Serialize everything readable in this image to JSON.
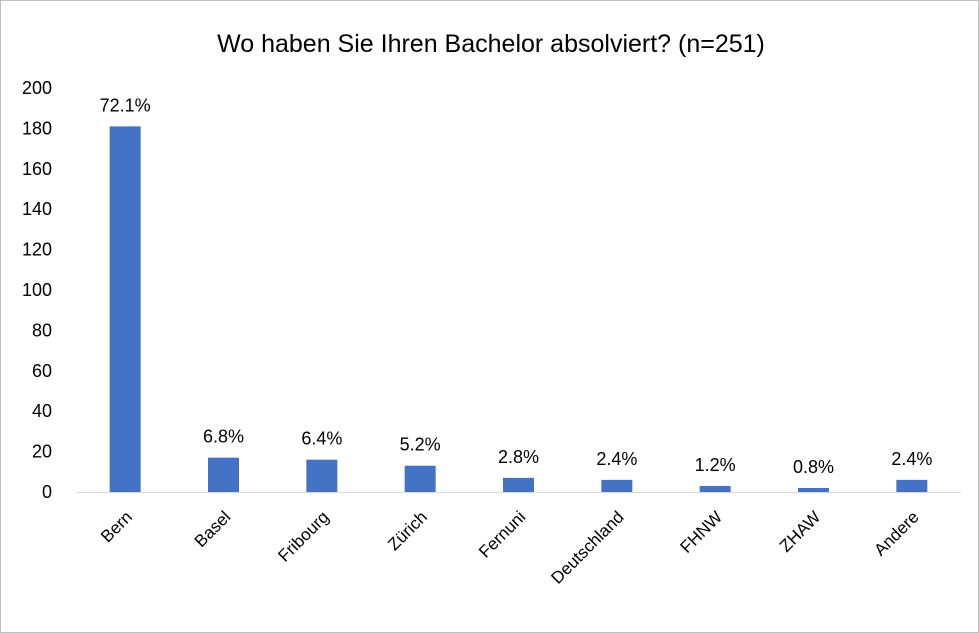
{
  "chart_data": {
    "type": "bar",
    "title": "Wo haben Sie Ihren Bachelor absolviert? (n=251)",
    "xlabel": "",
    "ylabel": "",
    "categories": [
      "Bern",
      "Basel",
      "Fribourg",
      "Zürich",
      "Fernuni",
      "Deutschland",
      "FHNW",
      "ZHAW",
      "Andere"
    ],
    "values": [
      181,
      17,
      16,
      13,
      7,
      6,
      3,
      2,
      6
    ],
    "data_labels": [
      "72.1%",
      "6.8%",
      "6.4%",
      "5.2%",
      "2.8%",
      "2.4%",
      "1.2%",
      "0.8%",
      "2.4%"
    ],
    "ylim": [
      0,
      200
    ],
    "yticks": [
      0,
      20,
      40,
      60,
      80,
      100,
      120,
      140,
      160,
      180,
      200
    ],
    "grid": false,
    "legend": "none",
    "bar_color": "#4472c4"
  }
}
